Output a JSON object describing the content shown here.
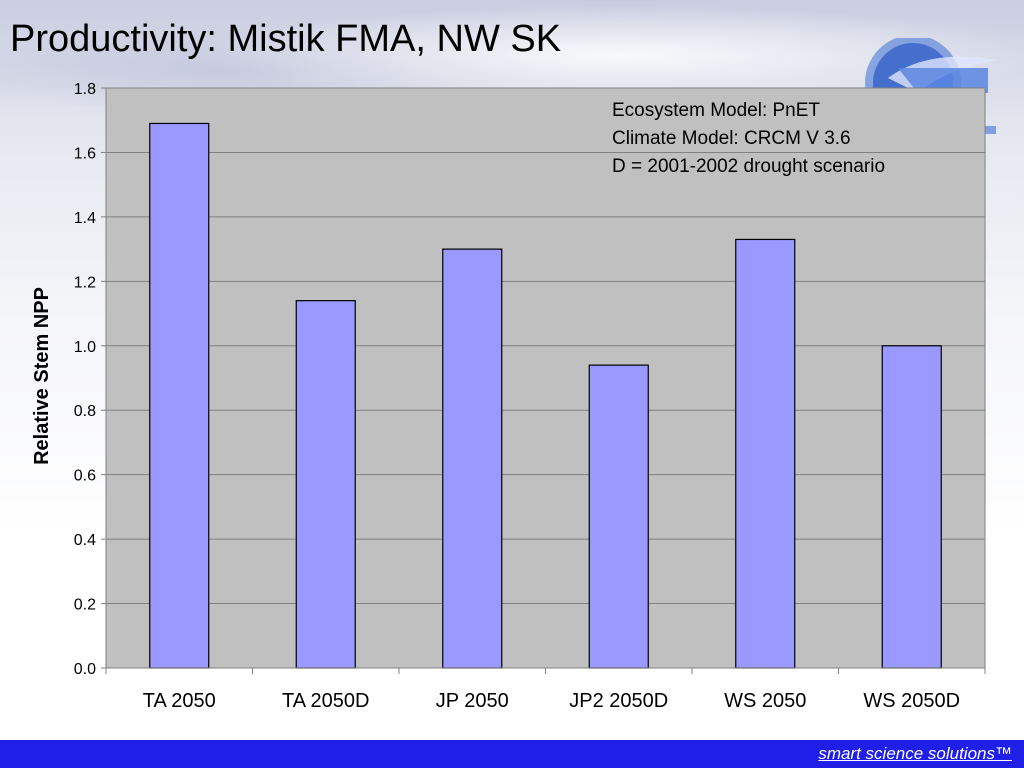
{
  "slide": {
    "title": "Productivity: Mistik FMA, NW SK",
    "footer_text": "smart science solutions™",
    "footer_color": "#1f1fe8"
  },
  "chart_data": {
    "type": "bar",
    "categories": [
      "TA 2050",
      "TA 2050D",
      "JP 2050",
      "JP2 2050D",
      "WS 2050",
      "WS 2050D"
    ],
    "values": [
      1.69,
      1.14,
      1.3,
      0.94,
      1.33,
      1.0
    ],
    "ylabel": "Relative Stem NPP",
    "xlabel": "",
    "ylim": [
      0,
      1.8
    ],
    "yticks": [
      "0.0",
      "0.2",
      "0.4",
      "0.6",
      "0.8",
      "1.0",
      "1.2",
      "1.4",
      "1.6",
      "1.8"
    ],
    "grid": true,
    "bar_color": "#9999ff",
    "plot_background": "#c0c0c0",
    "annotations": [
      "Ecosystem Model: PnET",
      "Climate Model: CRCM V 3.6",
      "D = 2001-2002 drought scenario"
    ]
  }
}
